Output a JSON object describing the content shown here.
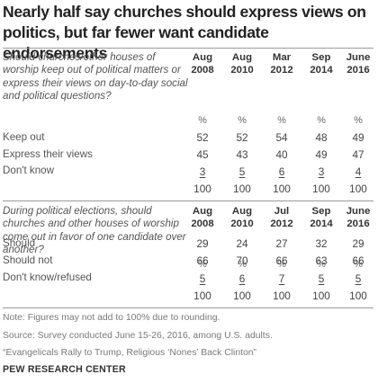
{
  "title": "Nearly half say churches should express views on politics, but far fewer want candidate endorsements",
  "table1": {
    "question": "Should churches/other houses of worship keep out of political matters or express their views on day-to-day social and political questions?",
    "headers": [
      {
        "month": "Aug",
        "year": "2008"
      },
      {
        "month": "Aug",
        "year": "2010"
      },
      {
        "month": "Mar",
        "year": "2012"
      },
      {
        "month": "Sep",
        "year": "2014"
      },
      {
        "month": "June",
        "year": "2016"
      }
    ],
    "unit_row": [
      "%",
      "%",
      "%",
      "%",
      "%"
    ],
    "rows": [
      {
        "label": "Keep out",
        "values": [
          "52",
          "52",
          "54",
          "48",
          "49"
        ]
      },
      {
        "label": "Express their views",
        "values": [
          "45",
          "43",
          "40",
          "49",
          "47"
        ]
      },
      {
        "label": "Don't know",
        "values": [
          "3",
          "5",
          "6",
          "3",
          "4"
        ]
      }
    ],
    "totals": [
      "100",
      "100",
      "100",
      "100",
      "100"
    ]
  },
  "table2": {
    "question": "During political elections, should churches and other houses of worship come out in favor of one candidate over another?",
    "headers": [
      {
        "month": "Aug",
        "year": "2008"
      },
      {
        "month": "Aug",
        "year": "2010"
      },
      {
        "month": "Jul",
        "year": "2012"
      },
      {
        "month": "Sep",
        "year": "2014"
      },
      {
        "month": "June",
        "year": "2016"
      }
    ],
    "unit_row": [
      "%",
      "%",
      "%",
      "%",
      "%"
    ],
    "rows": [
      {
        "label": "Should",
        "values": [
          "29",
          "24",
          "27",
          "32",
          "29"
        ]
      },
      {
        "label": "Should not",
        "values": [
          "66",
          "70",
          "66",
          "63",
          "66"
        ]
      },
      {
        "label": "Don't know/refused",
        "values": [
          "5",
          "6",
          "7",
          "5",
          "5"
        ]
      }
    ],
    "totals": [
      "100",
      "100",
      "100",
      "100",
      "100"
    ]
  },
  "notes": {
    "note": "Note: Figures may not add to 100% due to rounding.",
    "source": "Source: Survey conducted June 15-26, 2016, among U.S. adults.",
    "report": "“Evangelicals Rally to Trump, Religious ‘Nones’ Back Clinton”",
    "brand": "PEW RESEARCH CENTER"
  }
}
